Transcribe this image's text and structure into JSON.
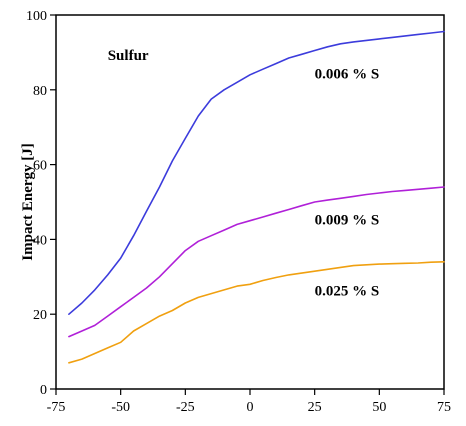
{
  "chart_data": {
    "type": "line",
    "title": "",
    "xlabel": "",
    "ylabel": "Impact Energy [J]",
    "xlim": [
      -75,
      75
    ],
    "ylim": [
      0,
      100
    ],
    "xticks": [
      -75,
      -50,
      -25,
      0,
      25,
      50,
      75
    ],
    "yticks": [
      0,
      20,
      40,
      60,
      80,
      100
    ],
    "xtick_labels": [
      "-75",
      "-50",
      "-25",
      "0",
      "25",
      "50",
      "75"
    ],
    "ytick_labels": [
      "0",
      "20",
      "40",
      "60",
      "80",
      "100"
    ],
    "grid": false,
    "annotations": [
      {
        "text": "Sulfur",
        "x": -55,
        "y": 88
      },
      {
        "text": "0.006 % S",
        "x": 25,
        "y": 83
      },
      {
        "text": "0.009 % S",
        "x": 25,
        "y": 44
      },
      {
        "text": "0.025 % S",
        "x": 25,
        "y": 25
      }
    ],
    "series": [
      {
        "color": "#3c3cdc",
        "label_ref": 1,
        "x": [
          -70,
          -65,
          -60,
          -55,
          -50,
          -45,
          -40,
          -35,
          -30,
          -25,
          -20,
          -15,
          -10,
          -5,
          0,
          5,
          10,
          15,
          20,
          25,
          30,
          35,
          40,
          45,
          50,
          55,
          60,
          65,
          70,
          75
        ],
        "y": [
          20,
          23,
          26.5,
          30.5,
          35,
          41,
          47.5,
          54,
          61,
          67,
          73,
          77.5,
          80,
          82,
          84,
          85.5,
          87,
          88.5,
          89.5,
          90.5,
          91.5,
          92.3,
          92.8,
          93.2,
          93.6,
          94,
          94.4,
          94.8,
          95.2,
          95.6
        ]
      },
      {
        "color": "#b020d8",
        "label_ref": 2,
        "x": [
          -70,
          -65,
          -60,
          -55,
          -50,
          -45,
          -40,
          -35,
          -30,
          -25,
          -20,
          -15,
          -10,
          -5,
          0,
          5,
          10,
          15,
          20,
          25,
          30,
          35,
          40,
          45,
          50,
          55,
          60,
          65,
          70,
          75
        ],
        "y": [
          14,
          15.5,
          17,
          19.5,
          22,
          24.5,
          27,
          30,
          33.5,
          37,
          39.5,
          41,
          42.5,
          44,
          45,
          46,
          47,
          48,
          49,
          50,
          50.5,
          51,
          51.5,
          52,
          52.4,
          52.8,
          53.1,
          53.4,
          53.7,
          54
        ]
      },
      {
        "color": "#f0a010",
        "label_ref": 3,
        "x": [
          -70,
          -65,
          -60,
          -55,
          -50,
          -45,
          -40,
          -35,
          -30,
          -25,
          -20,
          -15,
          -10,
          -5,
          0,
          5,
          10,
          15,
          20,
          25,
          30,
          35,
          40,
          45,
          50,
          55,
          60,
          65,
          70,
          75
        ],
        "y": [
          7,
          8,
          9.5,
          11,
          12.5,
          15.5,
          17.5,
          19.5,
          21,
          23,
          24.5,
          25.5,
          26.5,
          27.5,
          28,
          29,
          29.8,
          30.5,
          31,
          31.5,
          32,
          32.5,
          33,
          33.2,
          33.4,
          33.5,
          33.6,
          33.7,
          33.9,
          34
        ]
      }
    ]
  }
}
